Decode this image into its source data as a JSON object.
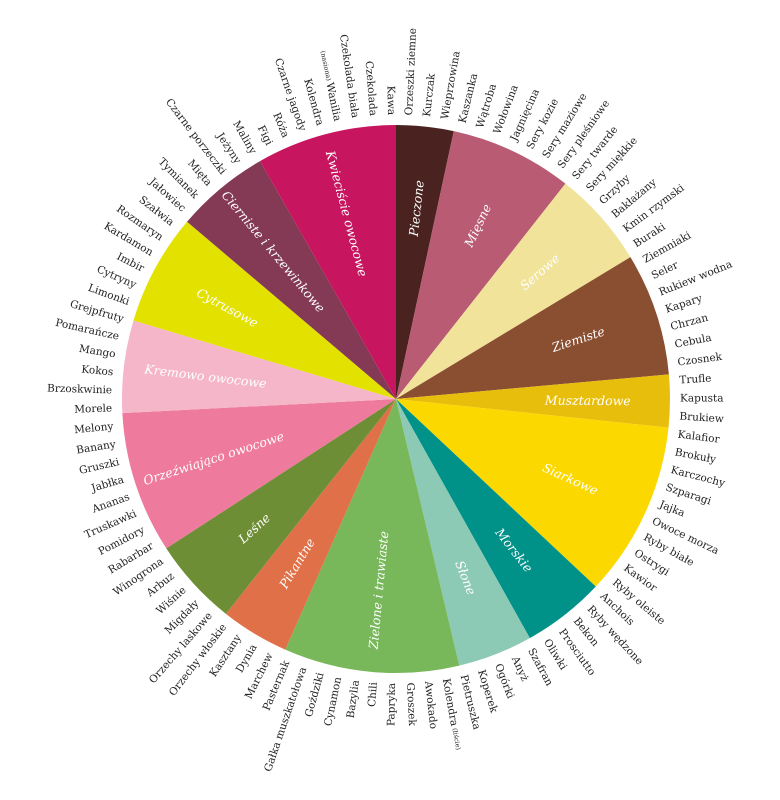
{
  "chart_data": {
    "type": "pie",
    "title": "",
    "segments": [
      {
        "name": "Pieczone",
        "color": "#4a2320",
        "value": 3.6
      },
      {
        "name": "Mięsne",
        "color": "#b85b73",
        "value": 7.7
      },
      {
        "name": "Serowe",
        "color": "#f1e39a",
        "value": 6.1
      },
      {
        "name": "Ziemiste",
        "color": "#8a4e31",
        "value": 7.7
      },
      {
        "name": "Musztardowe",
        "color": "#e8be0c",
        "value": 3.3
      },
      {
        "name": "Siarkowe",
        "color": "#fbd900",
        "value": 11.0
      },
      {
        "name": "Morskie",
        "color": "#009188",
        "value": 5.2
      },
      {
        "name": "Słone",
        "color": "#8ccab5",
        "value": 4.7
      },
      {
        "name": "Zielone i trawiaste",
        "color": "#78b85b",
        "value": 11.0
      },
      {
        "name": "Pikantne",
        "color": "#e07048",
        "value": 4.3
      },
      {
        "name": "Leśne",
        "color": "#6e8e35",
        "value": 5.5
      },
      {
        "name": "Orzeźwiająco owocowe",
        "color": "#ee7a9e",
        "value": 8.9
      },
      {
        "name": "Kremowo owocowe",
        "color": "#f5b6ca",
        "value": 5.8
      },
      {
        "name": "Cytrusowe",
        "color": "#e3e100",
        "value": 7.0
      },
      {
        "name": "Cierniste i krzewinkowe",
        "color": "#843a55",
        "value": 5.9
      },
      {
        "name": "Kwieciście owocowe",
        "color": "#c8155f",
        "value": 8.8
      }
    ],
    "ingredients": [
      "Kawa",
      "Orzeszki ziemne",
      "Kurczak",
      "Wieprzowina",
      "Kaszanka",
      "Wątroba",
      "Wołowina",
      "Jagnięcina",
      "Sery kozie",
      "Sery maziowe",
      "Sery pleśniowe",
      "Sery twarde",
      "Sery miękkie",
      "Grzyby",
      "Bakłażany",
      "Kmin rzymski",
      "Buraki",
      "Ziemniaki",
      "Seler",
      "Rukiew wodna",
      "Kapary",
      "Chrzan",
      "Cebula",
      "Czosnek",
      "Trufle",
      "Kapusta",
      "Brukiew",
      "Kalafior",
      "Brokuły",
      "Karczochy",
      "Szparagi",
      "Jajka",
      "Owoce morza",
      "Ryby białe",
      "Ostrygi",
      "Kawior",
      "Ryby oleiste",
      "Anchois",
      "Ryby wędzone",
      "Bekon",
      "Prosciutto",
      "Oliwki",
      "Szafran",
      "Anyż",
      "Ogórki",
      "Koperek",
      "Pietruszka",
      "Kolendra",
      "Awokado",
      "Groszek",
      "Papryka",
      "Chili",
      "Bazylia",
      "Cynamon",
      "Goździki",
      "Gałka muszkatołowa",
      "Pasternak",
      "Marchew",
      "Dynia",
      "Kasztany",
      "Orzechy włoskie",
      "Orzechy laskowe",
      "Migdały",
      "Wiśnie",
      "Arbuz",
      "Winogrona",
      "Rabarbar",
      "Pomidory",
      "Truskawki",
      "Ananas",
      "Jabłka",
      "Gruszki",
      "Banany",
      "Melony",
      "Morele",
      "Brzoskwinie",
      "Kokos",
      "Mango",
      "Pomarańcze",
      "Grejpfruty",
      "Limonki",
      "Cytryny",
      "Imbir",
      "Kardamon",
      "Rozmaryn",
      "Szałwia",
      "Jałowiec",
      "Tymianek",
      "Mięta",
      "Czarne porzeczki",
      "Jeżyny",
      "Maliny",
      "Figi",
      "Róża",
      "Czarne jagody",
      "Kolendra",
      "Wanilia",
      "Czekolada biała",
      "Czekolada"
    ],
    "ingredient_notes": [
      {
        "text": "(liście)",
        "after": 47
      },
      {
        "text": "(nasiona)",
        "after": 96
      }
    ]
  }
}
